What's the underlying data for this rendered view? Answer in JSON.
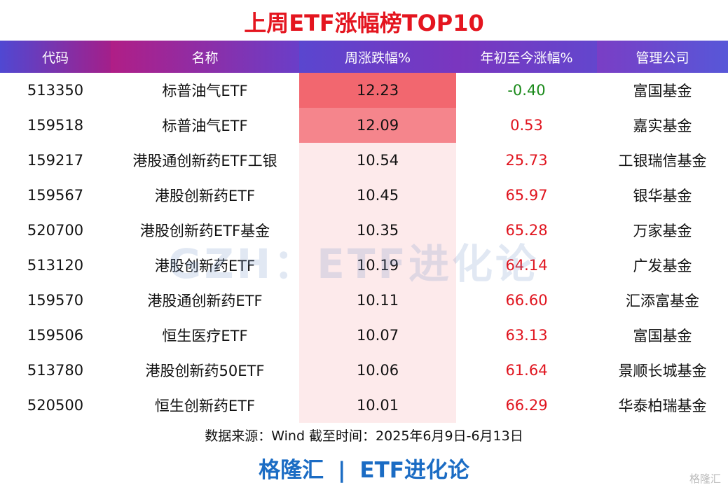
{
  "header": {
    "title": "上周ETF涨幅榜TOP10"
  },
  "table": {
    "columns": [
      "代码",
      "名称",
      "周涨跌幅%",
      "年初至今涨幅%",
      "管理公司"
    ],
    "rows": [
      [
        "513350",
        "标普油气ETF",
        "12.23",
        "-0.40",
        "富国基金"
      ],
      [
        "159518",
        "标普油气ETF",
        "12.09",
        "0.53",
        "嘉实基金"
      ],
      [
        "159217",
        "港股通创新药ETF工银",
        "10.54",
        "25.73",
        "工银瑞信基金"
      ],
      [
        "159567",
        "港股创新药ETF",
        "10.45",
        "65.97",
        "银华基金"
      ],
      [
        "520700",
        "港股创新药ETF基金",
        "10.35",
        "65.28",
        "万家基金"
      ],
      [
        "513120",
        "港股创新药ETF",
        "10.19",
        "64.14",
        "广发基金"
      ],
      [
        "159570",
        "港股通创新药ETF",
        "10.11",
        "66.60",
        "汇添富基金"
      ],
      [
        "159506",
        "恒生医疗ETF",
        "10.07",
        "63.13",
        "富国基金"
      ],
      [
        "513780",
        "港股创新药50ETF",
        "10.06",
        "61.64",
        "景顺长城基金"
      ],
      [
        "520500",
        "恒生创新药ETF",
        "10.01",
        "66.29",
        "华泰柏瑞基金"
      ]
    ]
  },
  "watermark": "GZH：ETF进化论",
  "footer": {
    "source": "数据来源：Wind 截至时间：2025年6月9日-6月13日",
    "brand_left": "格隆汇",
    "separator": "|",
    "brand_right": "ETF进化论",
    "logo": "格隆汇"
  }
}
